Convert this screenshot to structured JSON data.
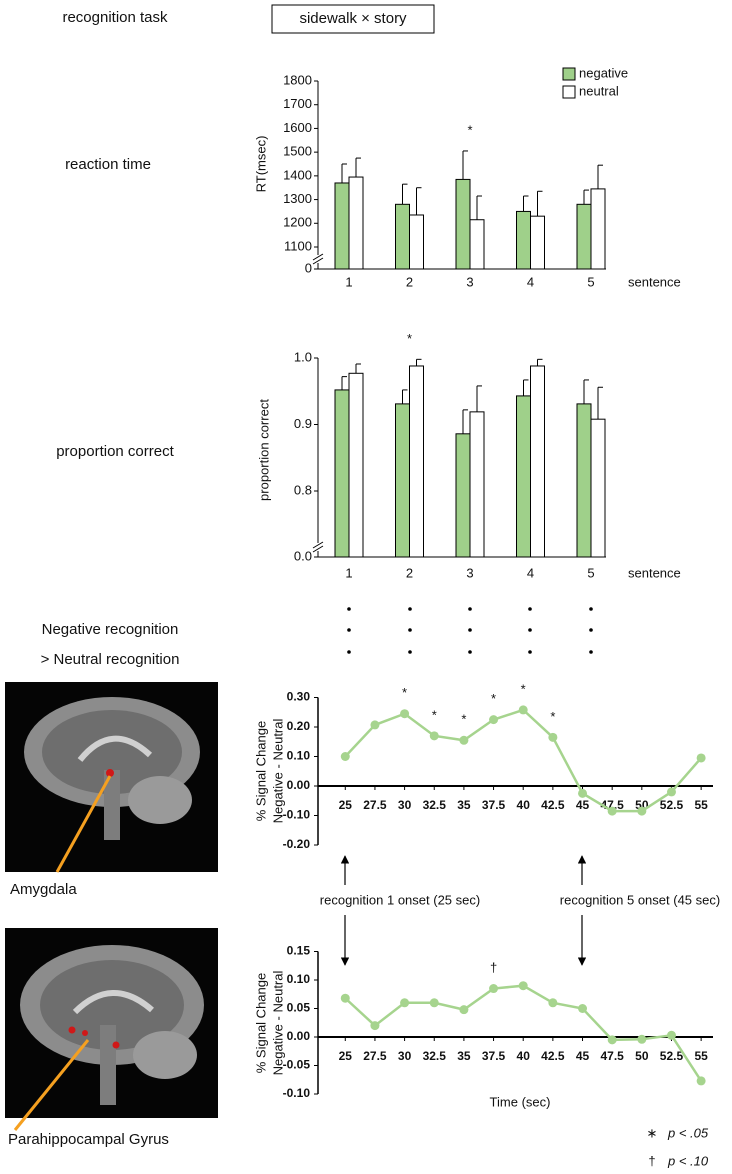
{
  "header": {
    "row_label": "recognition task",
    "condition": "sidewalk × story"
  },
  "row_labels": [
    "reaction time",
    "proportion correct",
    "Negative recognition",
    "> Neutral recognition"
  ],
  "regions": [
    "Amygdala",
    "Parahippocampal Gyrus"
  ],
  "annotations": [
    "recognition 1 onset (25 sec)",
    "recognition 5 onset (45 sec)"
  ],
  "significance_legend": [
    {
      "symbol": "∗",
      "text": "p < .05"
    },
    {
      "symbol": "†",
      "text": "p < .10"
    }
  ],
  "chart_data": [
    {
      "type": "bar",
      "ylabel": "RT(msec)",
      "xlabel": "sentence",
      "axis_break": true,
      "legend": "top-right",
      "categories": [
        "1",
        "2",
        "3",
        "4",
        "5"
      ],
      "series": [
        {
          "name": "negative",
          "color": "#9fd08a",
          "values": [
            1370,
            1280,
            1385,
            1250,
            1280
          ],
          "errors": [
            80,
            85,
            120,
            65,
            60
          ]
        },
        {
          "name": "neutral",
          "color": "#ffffff",
          "values": [
            1395,
            1235,
            1215,
            1230,
            1345
          ],
          "errors": [
            80,
            115,
            100,
            105,
            100
          ]
        }
      ],
      "markers": [
        null,
        null,
        "*",
        null,
        null
      ],
      "ylim": [
        1100,
        1800
      ],
      "yticks": [
        0,
        1100,
        1200,
        1300,
        1400,
        1500,
        1600,
        1700,
        1800
      ]
    },
    {
      "type": "bar",
      "ylabel": "proportion correct",
      "xlabel": "sentence",
      "axis_break": true,
      "categories": [
        "1",
        "2",
        "3",
        "4",
        "5"
      ],
      "series": [
        {
          "name": "negative",
          "color": "#9fd08a",
          "values": [
            0.952,
            0.931,
            0.886,
            0.943,
            0.931
          ],
          "errors": [
            0.02,
            0.021,
            0.036,
            0.024,
            0.036
          ]
        },
        {
          "name": "neutral",
          "color": "#ffffff",
          "values": [
            0.977,
            0.988,
            0.919,
            0.988,
            0.908
          ],
          "errors": [
            0.014,
            0.01,
            0.039,
            0.01,
            0.048
          ]
        }
      ],
      "markers": [
        null,
        "*",
        null,
        null,
        null
      ],
      "ylim": [
        0.8,
        1.0
      ],
      "yticks": [
        {
          "value": 0,
          "label": "0.0"
        },
        0.8,
        0.9,
        {
          "value": 1,
          "label": "1.0"
        }
      ]
    },
    {
      "type": "line",
      "ylabel": [
        "% Signal Change",
        "Negative - Neutral"
      ],
      "color": "#a6d48e",
      "x": [
        25,
        27.5,
        30,
        32.5,
        35,
        37.5,
        40,
        42.5,
        45,
        47.5,
        50,
        52.5,
        55
      ],
      "values": [
        0.1,
        0.207,
        0.245,
        0.17,
        0.155,
        0.225,
        0.258,
        0.165,
        -0.025,
        -0.085,
        -0.085,
        -0.02,
        0.095
      ],
      "markers": [
        null,
        null,
        "*",
        "*",
        "*",
        "*",
        "*",
        "*",
        null,
        null,
        null,
        null,
        null
      ],
      "xlim": [
        22.7,
        56
      ],
      "xticks": [
        25,
        27.5,
        30,
        32.5,
        35,
        37.5,
        40,
        42.5,
        45,
        47.5,
        50,
        52.5,
        55
      ],
      "ylim": [
        -0.2,
        0.3
      ],
      "yticks": [
        {
          "value": 0.3,
          "label": "0.30"
        },
        {
          "value": 0.2,
          "label": "0.20"
        },
        {
          "value": 0.1,
          "label": "0.10"
        },
        {
          "value": 0,
          "label": "0.00"
        },
        {
          "value": -0.1,
          "label": "-0.10"
        },
        {
          "value": -0.2,
          "label": "-0.20"
        }
      ]
    },
    {
      "type": "line",
      "ylabel": [
        "% Signal Change",
        "Negative - Neutral"
      ],
      "xlabel": "Time (sec)",
      "color": "#a6d48e",
      "x": [
        25,
        27.5,
        30,
        32.5,
        35,
        37.5,
        40,
        42.5,
        45,
        47.5,
        50,
        52.5,
        55
      ],
      "values": [
        0.068,
        0.02,
        0.06,
        0.06,
        0.048,
        0.085,
        0.09,
        0.06,
        0.05,
        -0.005,
        -0.004,
        0.003,
        -0.077
      ],
      "markers": [
        null,
        null,
        null,
        null,
        null,
        "†",
        null,
        null,
        null,
        null,
        null,
        null,
        null
      ],
      "xlim": [
        22.7,
        56
      ],
      "xticks": [
        25,
        27.5,
        30,
        32.5,
        35,
        37.5,
        40,
        42.5,
        45,
        47.5,
        50,
        52.5,
        55
      ],
      "ylim": [
        -0.1,
        0.15
      ],
      "yticks": [
        0.15,
        {
          "value": 0.1,
          "label": "0.10"
        },
        0.05,
        {
          "value": 0,
          "label": "0.00"
        },
        -0.05,
        {
          "value": -0.1,
          "label": "-0.10"
        }
      ]
    }
  ]
}
